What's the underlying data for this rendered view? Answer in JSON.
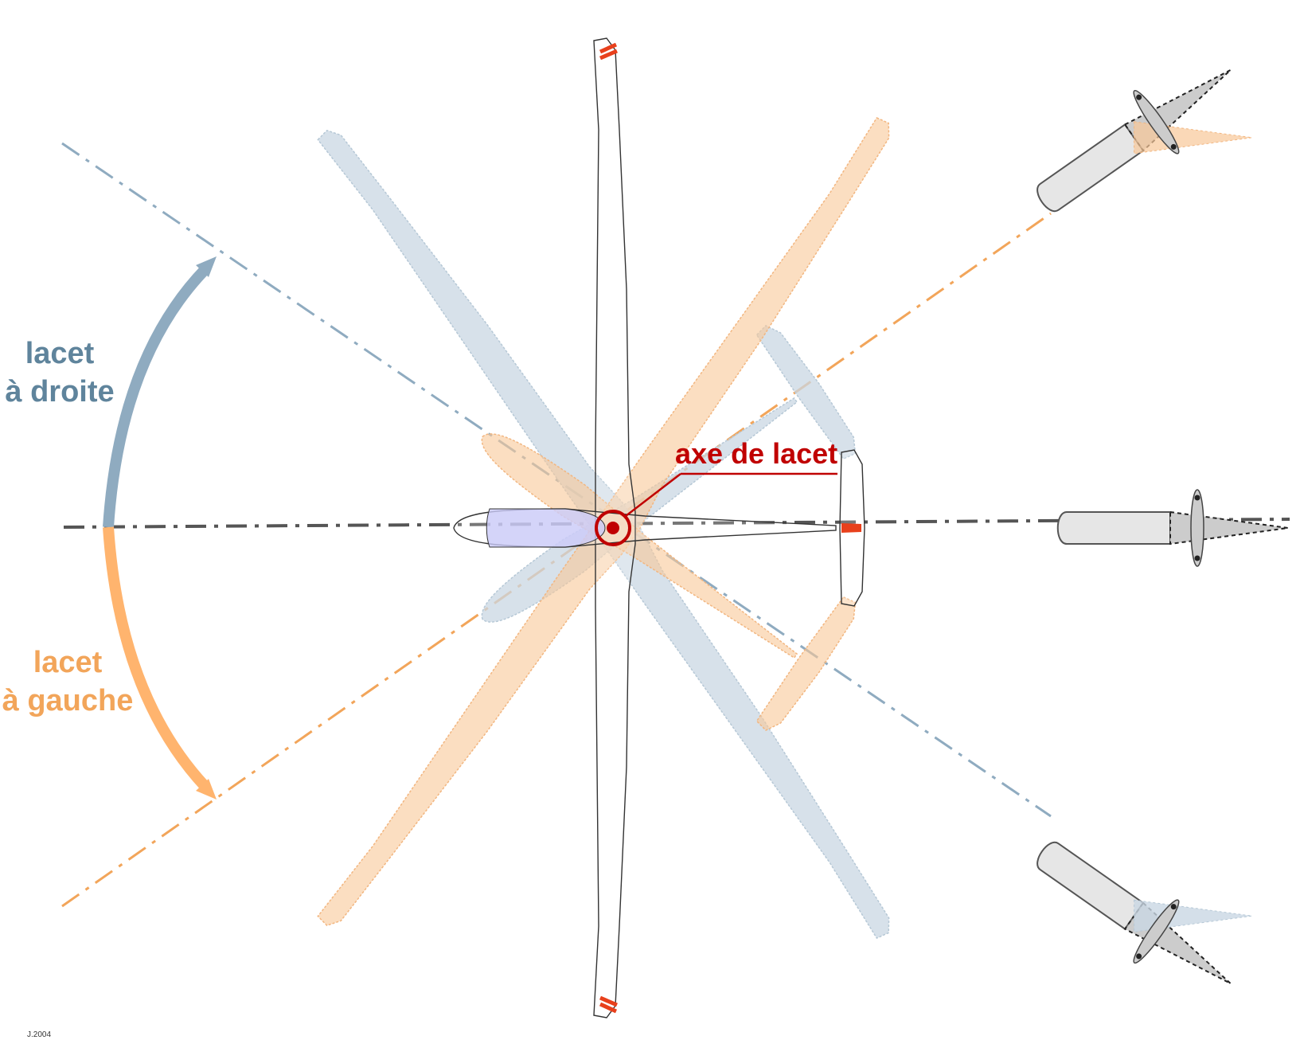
{
  "labels": {
    "yaw_right_line1": "lacet",
    "yaw_right_line2": "à droite",
    "yaw_left_line1": "lacet",
    "yaw_left_line2": "à gauche",
    "yaw_axis": "axe de lacet",
    "credit": "J.2004"
  },
  "colors": {
    "right": "#5f849c",
    "right_fill": "#c9d7e3",
    "left": "#f2a55a",
    "left_fill": "#f8c898",
    "axis": "#c00000",
    "neutral": "#555555",
    "canopy": "#c9c9f7",
    "stripe": "#e8401c"
  },
  "yaw_angles_deg": {
    "right": -35,
    "left": 35
  }
}
